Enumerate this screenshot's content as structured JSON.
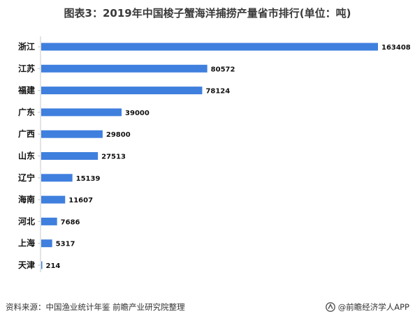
{
  "title": "图表3：2019年中国梭子蟹海洋捕捞产量省市排行(单位：吨)",
  "footer": {
    "source": "资料来源：中国渔业统计年鉴 前瞻产业研究院整理",
    "brand": "@前瞻经济学人APP"
  },
  "colors": {
    "bar": "#3f7fde",
    "axis": "#c8c8c8"
  },
  "chart_data": {
    "type": "bar",
    "orientation": "horizontal",
    "categories": [
      "浙江",
      "江苏",
      "福建",
      "广东",
      "广西",
      "山东",
      "辽宁",
      "海南",
      "河北",
      "上海",
      "天津"
    ],
    "values": [
      163408,
      80572,
      78124,
      39000,
      29800,
      27513,
      15139,
      11607,
      7686,
      5317,
      214
    ],
    "value_labels": [
      "163408",
      "80572",
      "78124",
      "39000",
      "29800",
      "27513",
      "15139",
      "11607",
      "7686",
      "5317",
      "214"
    ],
    "title": "图表3：2019年中国梭子蟹海洋捕捞产量省市排行(单位：吨)",
    "xlabel": "",
    "ylabel": "",
    "xlim": [
      0,
      163408
    ],
    "grid": false,
    "legend": "none"
  }
}
